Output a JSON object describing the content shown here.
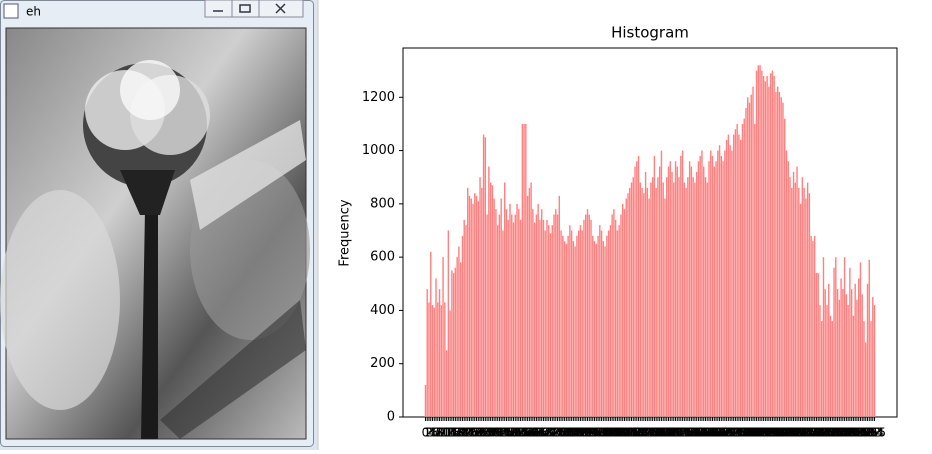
{
  "window": {
    "title": "eh"
  },
  "chart_data": {
    "type": "bar",
    "title": "Histogram",
    "ylabel": "Frequency",
    "color": "#ff8080",
    "categories": [
      0,
      1,
      2,
      3,
      4,
      5,
      6,
      7,
      8,
      9,
      10,
      11,
      12,
      13,
      14,
      15,
      16,
      17,
      18,
      19,
      20,
      21,
      22,
      23,
      24,
      25,
      26,
      27,
      28,
      29,
      30,
      31,
      32,
      33,
      34,
      35,
      36,
      37,
      38,
      39,
      40,
      41,
      42,
      43,
      44,
      45,
      46,
      47,
      48,
      49,
      50,
      51,
      52,
      53,
      54,
      55,
      56,
      57,
      58,
      59,
      60,
      61,
      62,
      63,
      64,
      65,
      66,
      67,
      68,
      69,
      70,
      71,
      72,
      73,
      74,
      75,
      76,
      77,
      78,
      79,
      80,
      81,
      82,
      83,
      84,
      85,
      86,
      87,
      88,
      89,
      90,
      91,
      92,
      93,
      94,
      95,
      96,
      97,
      98,
      99,
      100,
      101,
      102,
      103,
      104,
      105,
      106,
      107,
      108,
      109,
      110,
      111,
      112,
      113,
      114,
      115,
      116,
      117,
      118,
      119,
      120,
      121,
      122,
      123,
      124,
      125,
      126,
      127,
      128,
      129,
      130,
      131,
      132,
      133,
      134,
      135,
      136,
      137,
      138,
      139,
      140,
      141,
      142,
      143,
      144,
      145,
      146,
      147,
      148,
      149,
      150,
      151,
      152,
      153,
      154,
      155,
      156,
      157,
      158,
      159,
      160,
      161,
      162,
      163,
      164,
      165,
      166,
      167,
      168,
      169,
      170,
      171,
      172,
      173,
      174,
      175,
      176,
      177,
      178,
      179,
      180,
      181,
      182,
      183,
      184,
      185,
      186,
      187,
      188,
      189,
      190,
      191,
      192,
      193,
      194,
      195,
      196,
      197,
      198,
      199,
      200,
      201,
      202,
      203,
      204,
      205,
      206,
      207,
      208,
      209,
      210,
      211,
      212,
      213,
      214,
      215,
      216,
      217,
      218,
      219,
      220,
      221,
      222,
      223,
      224,
      225,
      226,
      227,
      228,
      229,
      230,
      231,
      232,
      233,
      234,
      235,
      236,
      237,
      238,
      239,
      240,
      241,
      242,
      243,
      244,
      245,
      246,
      247,
      248,
      249,
      250,
      251,
      252,
      253,
      254,
      255
    ],
    "values": [
      120,
      480,
      430,
      620,
      420,
      410,
      520,
      430,
      480,
      420,
      600,
      430,
      250,
      700,
      400,
      550,
      540,
      560,
      600,
      640,
      580,
      680,
      740,
      720,
      860,
      830,
      820,
      800,
      840,
      830,
      810,
      900,
      860,
      1060,
      1050,
      760,
      940,
      880,
      870,
      820,
      780,
      720,
      760,
      820,
      700,
      880,
      780,
      740,
      800,
      760,
      730,
      760,
      800,
      780,
      740,
      1100,
      1100,
      1100,
      830,
      860,
      880,
      780,
      730,
      760,
      800,
      740,
      780,
      740,
      700,
      740,
      720,
      690,
      720,
      760,
      780,
      760,
      830,
      700,
      680,
      660,
      650,
      680,
      720,
      700,
      660,
      640,
      680,
      700,
      720,
      700,
      740,
      760,
      780,
      760,
      740,
      680,
      660,
      650,
      680,
      720,
      700,
      660,
      640,
      680,
      700,
      720,
      760,
      780,
      740,
      700,
      720,
      760,
      800,
      780,
      820,
      840,
      860,
      880,
      900,
      940,
      960,
      980,
      880,
      860,
      840,
      920,
      860,
      820,
      880,
      900,
      980,
      860,
      900,
      940,
      1000,
      880,
      820,
      900,
      940,
      960,
      920,
      880,
      960,
      940,
      900,
      980,
      1000,
      880,
      860,
      900,
      960,
      940,
      900,
      880,
      920,
      960,
      980,
      1000,
      940,
      900,
      880,
      960,
      1000,
      980,
      940,
      960,
      1000,
      1020,
      980,
      960,
      1000,
      1040,
      1060,
      1020,
      1000,
      1060,
      1080,
      1100,
      1060,
      1040,
      1100,
      1120,
      1160,
      1200,
      1180,
      1210,
      1240,
      1100,
      1300,
      1320,
      1320,
      1300,
      1280,
      1260,
      1280,
      1240,
      1290,
      1300,
      1280,
      1220,
      1240,
      1220,
      1200,
      1180,
      1120,
      1000,
      960,
      900,
      860,
      920,
      880,
      940,
      860,
      800,
      900,
      860,
      820,
      880,
      840,
      680,
      660,
      680,
      540,
      540,
      420,
      360,
      600,
      480,
      420,
      500,
      380,
      360,
      560,
      600,
      480,
      440,
      520,
      480,
      600,
      460,
      420,
      560,
      480,
      380,
      500,
      440,
      520,
      580,
      460,
      360,
      280,
      500,
      590,
      360,
      450,
      420
    ],
    "xlim": [
      -12.75,
      267.75
    ],
    "ylim": [
      0,
      1385
    ],
    "yticks": [
      0,
      200,
      400,
      600,
      800,
      1000,
      1200
    ]
  }
}
